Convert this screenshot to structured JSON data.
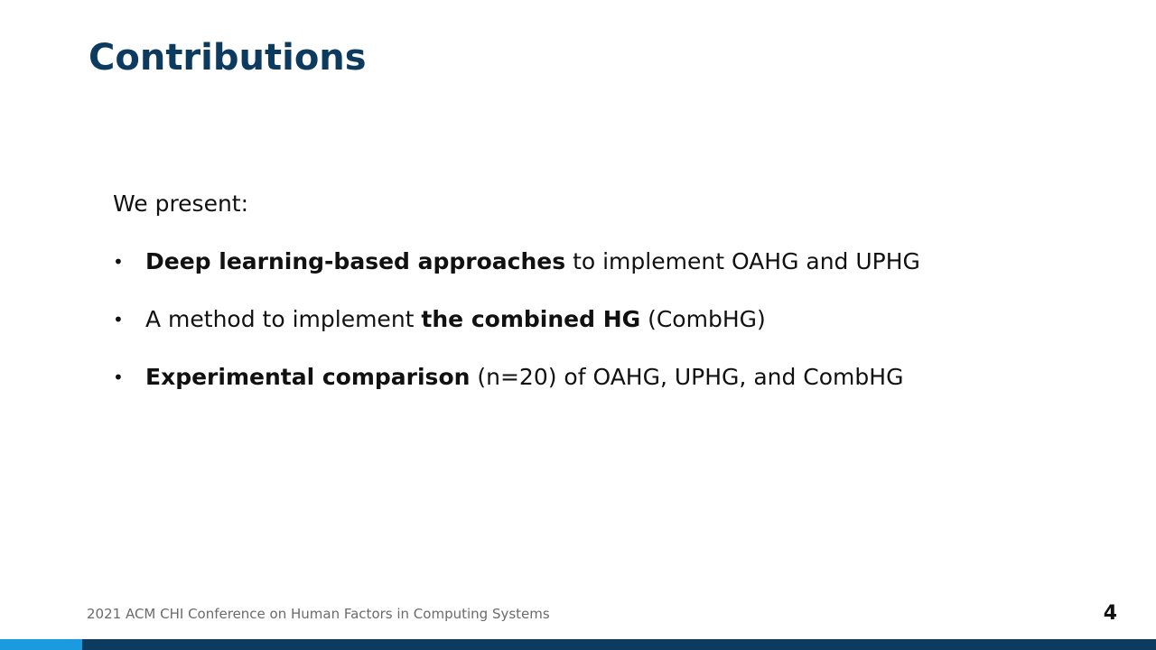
{
  "slide": {
    "title": "Contributions",
    "intro": "We present:",
    "bullets": [
      {
        "bold_lead": "Deep learning-based approaches",
        "text_after": " to implement OAHG and UPHG"
      },
      {
        "text_before": "A method to implement ",
        "bold_mid": "the combined HG",
        "text_after": " (CombHG)"
      },
      {
        "bold_lead": "Experimental comparison",
        "text_after": " (n=20) of OAHG, UPHG, and CombHG"
      }
    ],
    "bullet_glyph": "•"
  },
  "footer": {
    "conference": "2021 ACM CHI Conference on Human Factors in Computing Systems",
    "page_number": "4"
  },
  "colors": {
    "title": "#0d3a5f",
    "bar": "#0d3a5f",
    "bar_accent": "#1a9be0"
  }
}
